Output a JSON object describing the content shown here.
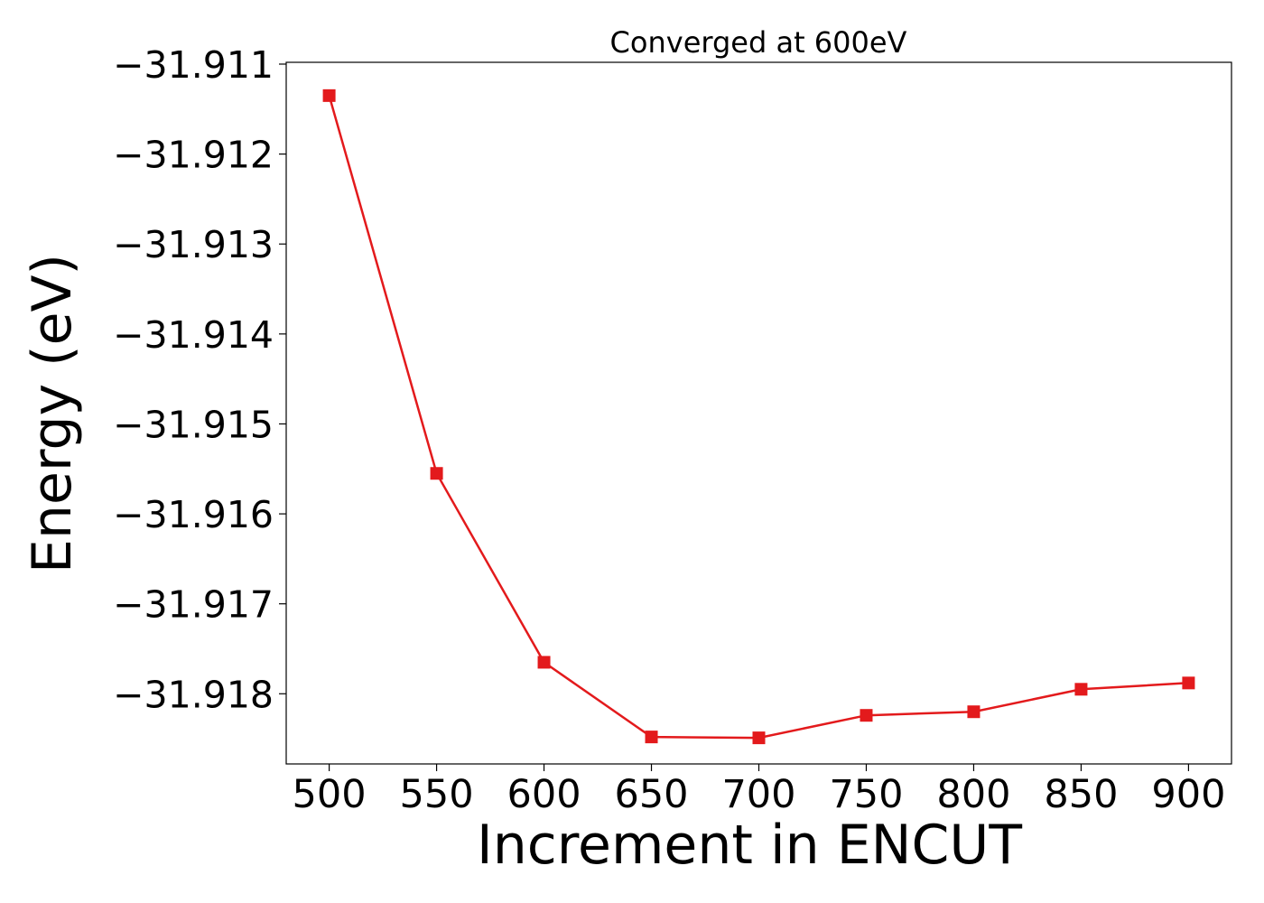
{
  "chart_data": {
    "type": "line",
    "title": "Converged at 600eV",
    "xlabel": "Increment in ENCUT",
    "ylabel": "Energy (eV)",
    "x": [
      500,
      550,
      600,
      650,
      700,
      750,
      800,
      850,
      900
    ],
    "series": [
      {
        "values": [
          -31.91135,
          -31.91555,
          -31.91765,
          -31.91848,
          -31.91849,
          -31.91824,
          -31.9182,
          -31.91795,
          -31.91788
        ],
        "color": "#e31a1c",
        "marker": "square"
      }
    ],
    "xlim": [
      480,
      920
    ],
    "ylim": [
      -31.91878,
      -31.91098
    ],
    "xticks": [
      500,
      550,
      600,
      650,
      700,
      750,
      800,
      850,
      900
    ],
    "xtick_labels": [
      "500",
      "550",
      "600",
      "650",
      "700",
      "750",
      "800",
      "850",
      "900"
    ],
    "yticks": [
      -31.911,
      -31.912,
      -31.913,
      -31.914,
      -31.915,
      -31.916,
      -31.917,
      -31.918
    ],
    "ytick_labels": [
      "−31.911",
      "−31.912",
      "−31.913",
      "−31.914",
      "−31.915",
      "−31.916",
      "−31.917",
      "−31.918"
    ],
    "grid": false,
    "legend": "none"
  }
}
